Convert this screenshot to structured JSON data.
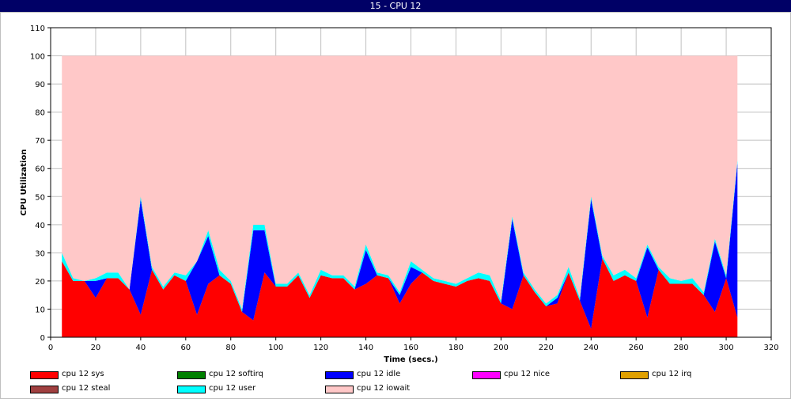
{
  "window": {
    "title": "15 - CPU 12"
  },
  "chart_data": {
    "type": "area",
    "title": "",
    "xlabel": "Time (secs.)",
    "ylabel": "CPU Utilization",
    "xlim": [
      0,
      320
    ],
    "ylim": [
      0,
      110
    ],
    "xticks": [
      0,
      20,
      40,
      60,
      80,
      100,
      120,
      140,
      160,
      180,
      200,
      220,
      240,
      260,
      280,
      300,
      320
    ],
    "yticks": [
      0,
      10,
      20,
      30,
      40,
      50,
      60,
      70,
      80,
      90,
      100,
      110
    ],
    "grid": true,
    "stacked": true,
    "legend_position": "bottom",
    "x": [
      5,
      10,
      15,
      20,
      25,
      30,
      35,
      40,
      45,
      50,
      55,
      60,
      65,
      70,
      75,
      80,
      85,
      90,
      95,
      100,
      105,
      110,
      115,
      120,
      125,
      130,
      135,
      140,
      145,
      150,
      155,
      160,
      165,
      170,
      175,
      180,
      185,
      190,
      195,
      200,
      205,
      210,
      215,
      220,
      225,
      230,
      235,
      240,
      245,
      250,
      255,
      260,
      265,
      270,
      275,
      280,
      285,
      290,
      295,
      300,
      305
    ],
    "series": [
      {
        "name": "cpu 12 sys",
        "color": "#ff0000",
        "values": [
          27,
          20,
          20,
          14,
          21,
          21,
          17,
          8,
          24,
          17,
          22,
          20,
          8,
          19,
          22,
          19,
          9,
          6,
          23,
          18,
          18,
          22,
          14,
          22,
          21,
          21,
          17,
          19,
          22,
          21,
          12,
          19,
          23,
          20,
          19,
          18,
          20,
          21,
          20,
          12,
          10,
          22,
          16,
          11,
          12,
          23,
          13,
          3,
          28,
          20,
          22,
          20,
          7,
          24,
          19,
          19,
          19,
          15,
          9,
          21,
          7
        ]
      },
      {
        "name": "cpu 12 softirq",
        "color": "#008000",
        "values": [
          0,
          0,
          0,
          0,
          0,
          0,
          0,
          0,
          0,
          0,
          0,
          0,
          0,
          0,
          0,
          0,
          0,
          0,
          0,
          0,
          0,
          0,
          0,
          0,
          0,
          0,
          0,
          0,
          0,
          0,
          0,
          0,
          0,
          0,
          0,
          0,
          0,
          0,
          0,
          0,
          0,
          0,
          0,
          0,
          0,
          0,
          0,
          0,
          0,
          0,
          0,
          0,
          0,
          0,
          0,
          0,
          0,
          0,
          0,
          0,
          0
        ]
      },
      {
        "name": "cpu 12 idle",
        "color": "#0000ff",
        "values": [
          0,
          0,
          0,
          6,
          0,
          0,
          0,
          41,
          0,
          0,
          0,
          0,
          19,
          17,
          0,
          0,
          0,
          32,
          15,
          0,
          0,
          0,
          0,
          0,
          0,
          0,
          0,
          12,
          0,
          0,
          3,
          6,
          0,
          0,
          0,
          0,
          0,
          0,
          0,
          0,
          32,
          0,
          0,
          0,
          2,
          0,
          0,
          46,
          0,
          0,
          0,
          0,
          25,
          0,
          0,
          0,
          0,
          0,
          25,
          0,
          55
        ]
      },
      {
        "name": "cpu 12 nice",
        "color": "#ff00ff",
        "values": [
          0,
          0,
          0,
          0,
          0,
          0,
          0,
          0,
          0,
          0,
          0,
          0,
          0,
          0,
          0,
          0,
          0,
          0,
          0,
          0,
          0,
          0,
          0,
          0,
          0,
          0,
          0,
          0,
          0,
          0,
          0,
          0,
          0,
          0,
          0,
          0,
          0,
          0,
          0,
          0,
          0,
          0,
          0,
          0,
          0,
          0,
          0,
          0,
          0,
          0,
          0,
          0,
          0,
          0,
          0,
          0,
          0,
          0,
          0,
          0,
          0
        ]
      },
      {
        "name": "cpu 12 irq",
        "color": "#e0a000",
        "values": [
          0,
          0,
          0,
          0,
          0,
          0,
          0,
          0,
          0,
          0,
          0,
          0,
          0,
          0,
          0,
          0,
          0,
          0,
          0,
          0,
          0,
          0,
          0,
          0,
          0,
          0,
          0,
          0,
          0,
          0,
          0,
          0,
          0,
          0,
          0,
          0,
          0,
          0,
          0,
          0,
          0,
          0,
          0,
          0,
          0,
          0,
          0,
          0,
          0,
          0,
          0,
          0,
          0,
          0,
          0,
          0,
          0,
          0,
          0,
          0,
          0
        ]
      },
      {
        "name": "cpu 12 steal",
        "color": "#a04040",
        "values": [
          0,
          0,
          0,
          0,
          0,
          0,
          0,
          0,
          0,
          0,
          0,
          0,
          0,
          0,
          0,
          0,
          0,
          0,
          0,
          0,
          0,
          0,
          0,
          0,
          0,
          0,
          0,
          0,
          0,
          0,
          0,
          0,
          0,
          0,
          0,
          0,
          0,
          0,
          0,
          0,
          0,
          0,
          0,
          0,
          0,
          0,
          0,
          0,
          0,
          0,
          0,
          0,
          0,
          0,
          0,
          0,
          0,
          0,
          0,
          0,
          0
        ]
      },
      {
        "name": "cpu 12 user",
        "color": "#00ffff",
        "values": [
          3,
          1,
          0,
          1,
          2,
          2,
          0,
          1,
          1,
          1,
          1,
          2,
          0,
          2,
          2,
          1,
          1,
          2,
          2,
          1,
          1,
          1,
          1,
          2,
          1,
          1,
          1,
          2,
          1,
          1,
          1,
          2,
          1,
          1,
          1,
          1,
          1,
          2,
          2,
          1,
          1,
          1,
          1,
          1,
          1,
          2,
          1,
          1,
          1,
          2,
          2,
          1,
          1,
          1,
          2,
          1,
          2,
          1,
          1,
          1,
          1
        ]
      },
      {
        "name": "cpu 12 iowait",
        "color": "#ffc8c8",
        "values": [
          70,
          79,
          80,
          79,
          77,
          77,
          83,
          50,
          75,
          82,
          77,
          78,
          73,
          62,
          76,
          80,
          90,
          60,
          60,
          81,
          81,
          77,
          85,
          76,
          78,
          78,
          82,
          67,
          77,
          78,
          84,
          73,
          76,
          79,
          80,
          81,
          79,
          77,
          78,
          87,
          57,
          77,
          83,
          88,
          85,
          75,
          86,
          50,
          71,
          78,
          76,
          79,
          67,
          75,
          79,
          80,
          79,
          84,
          65,
          78,
          37
        ]
      }
    ],
    "legend_layout": [
      [
        "cpu 12 sys",
        "cpu 12 softirq",
        "cpu 12 idle",
        "cpu 12 nice",
        "cpu 12 irq"
      ],
      [
        "cpu 12 steal",
        "cpu 12 user",
        "cpu 12 iowait"
      ]
    ]
  }
}
